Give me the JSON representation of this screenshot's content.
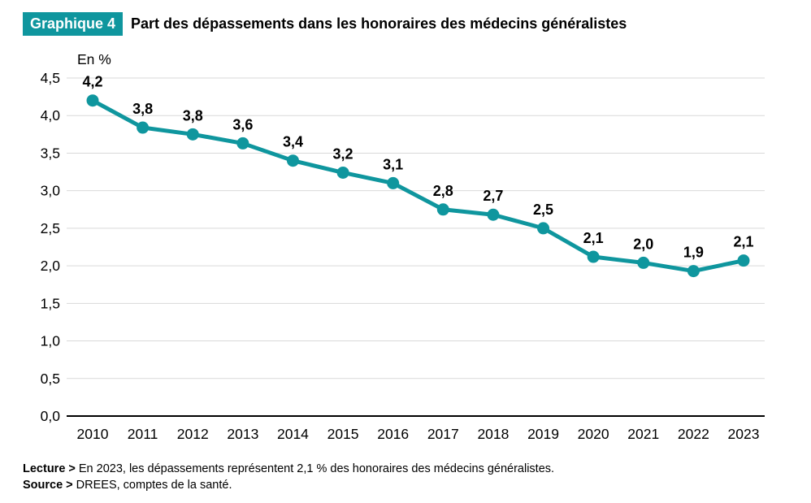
{
  "header": {
    "badge": "Graphique 4",
    "title": "Part des dépassements dans les honoraires des médecins généralistes"
  },
  "notes": {
    "lecture_label": "Lecture >",
    "lecture_text": "En 2023, les dépassements représentent 2,1 % des honoraires des médecins généralistes.",
    "source_label": "Source >",
    "source_text": "DREES, comptes de la santé."
  },
  "colors": {
    "accent_teal": "#0f969e",
    "grid_gray": "#d9d9d9",
    "axis_black": "#000000",
    "text_black": "#000000",
    "badge_text": "#ffffff"
  },
  "chart_data": {
    "type": "line",
    "title": "Part des dépassements dans les honoraires des médecins généralistes",
    "unit_label": "En %",
    "categories": [
      "2010",
      "2011",
      "2012",
      "2013",
      "2014",
      "2015",
      "2016",
      "2017",
      "2018",
      "2019",
      "2020",
      "2021",
      "2022",
      "2023"
    ],
    "values": [
      4.2,
      3.8,
      3.8,
      3.6,
      3.4,
      3.2,
      3.1,
      2.8,
      2.7,
      2.5,
      2.1,
      2.0,
      1.9,
      2.1
    ],
    "values_plot": [
      4.2,
      3.84,
      3.75,
      3.63,
      3.4,
      3.24,
      3.1,
      2.75,
      2.68,
      2.5,
      2.12,
      2.04,
      1.93,
      2.07
    ],
    "point_labels": [
      "4,2",
      "3,8",
      "3,8",
      "3,6",
      "3,4",
      "3,2",
      "3,1",
      "2,8",
      "2,7",
      "2,5",
      "2,1",
      "2,0",
      "1,9",
      "2,1"
    ],
    "xlabel": "",
    "ylabel": "En %",
    "ylim": [
      0,
      4.5
    ],
    "ytick_step": 0.5,
    "ytick_labels": [
      "0,0",
      "0,5",
      "1,0",
      "1,5",
      "2,0",
      "2,5",
      "3,0",
      "3,5",
      "4,0",
      "4,5"
    ],
    "grid": true,
    "legend_position": "none",
    "line_color": "#0f969e",
    "marker_color": "#0f969e",
    "grid_color": "#d9d9d9",
    "axis_color": "#000000"
  }
}
